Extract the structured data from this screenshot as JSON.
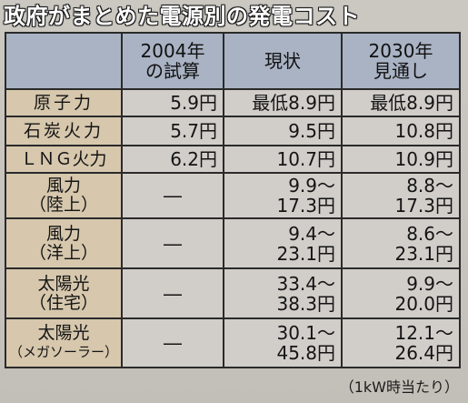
{
  "title": "政府がまとめた電源別の発電コスト",
  "header": {
    "col1": [
      "2004年",
      "の試算"
    ],
    "col2": "現状",
    "col3": [
      "2030年",
      "見通し"
    ]
  },
  "rows": [
    {
      "name": [
        "原子力"
      ],
      "c2004": "5.9円",
      "current": [
        "最低8.9円"
      ],
      "y2030": [
        "最低8.9円"
      ]
    },
    {
      "name": [
        "石炭火力"
      ],
      "c2004": "5.7円",
      "current": [
        "9.5円"
      ],
      "y2030": [
        "10.8円"
      ]
    },
    {
      "name": [
        "ＬＮＧ火力"
      ],
      "c2004": "6.2円",
      "current": [
        "10.7円"
      ],
      "y2030": [
        "10.9円"
      ]
    },
    {
      "name": [
        "風力",
        "（陸上）"
      ],
      "c2004": "―",
      "current": [
        "9.9～",
        "17.3円"
      ],
      "y2030": [
        "8.8～",
        "17.3円"
      ]
    },
    {
      "name": [
        "風力",
        "（洋上）"
      ],
      "c2004": "―",
      "current": [
        "9.4～",
        "23.1円"
      ],
      "y2030": [
        "8.6～",
        "23.1円"
      ]
    },
    {
      "name": [
        "太陽光",
        "（住宅）"
      ],
      "c2004": "―",
      "current": [
        "33.4～",
        "38.3円"
      ],
      "y2030": [
        "9.9～",
        "20.0円"
      ]
    },
    {
      "name": [
        "太陽光",
        "（メガソーラー）"
      ],
      "c2004": "―",
      "current": [
        "30.1～",
        "45.8円"
      ],
      "y2030": [
        "12.1～",
        "26.4円"
      ]
    }
  ],
  "note": "（1kW時当たり）"
}
